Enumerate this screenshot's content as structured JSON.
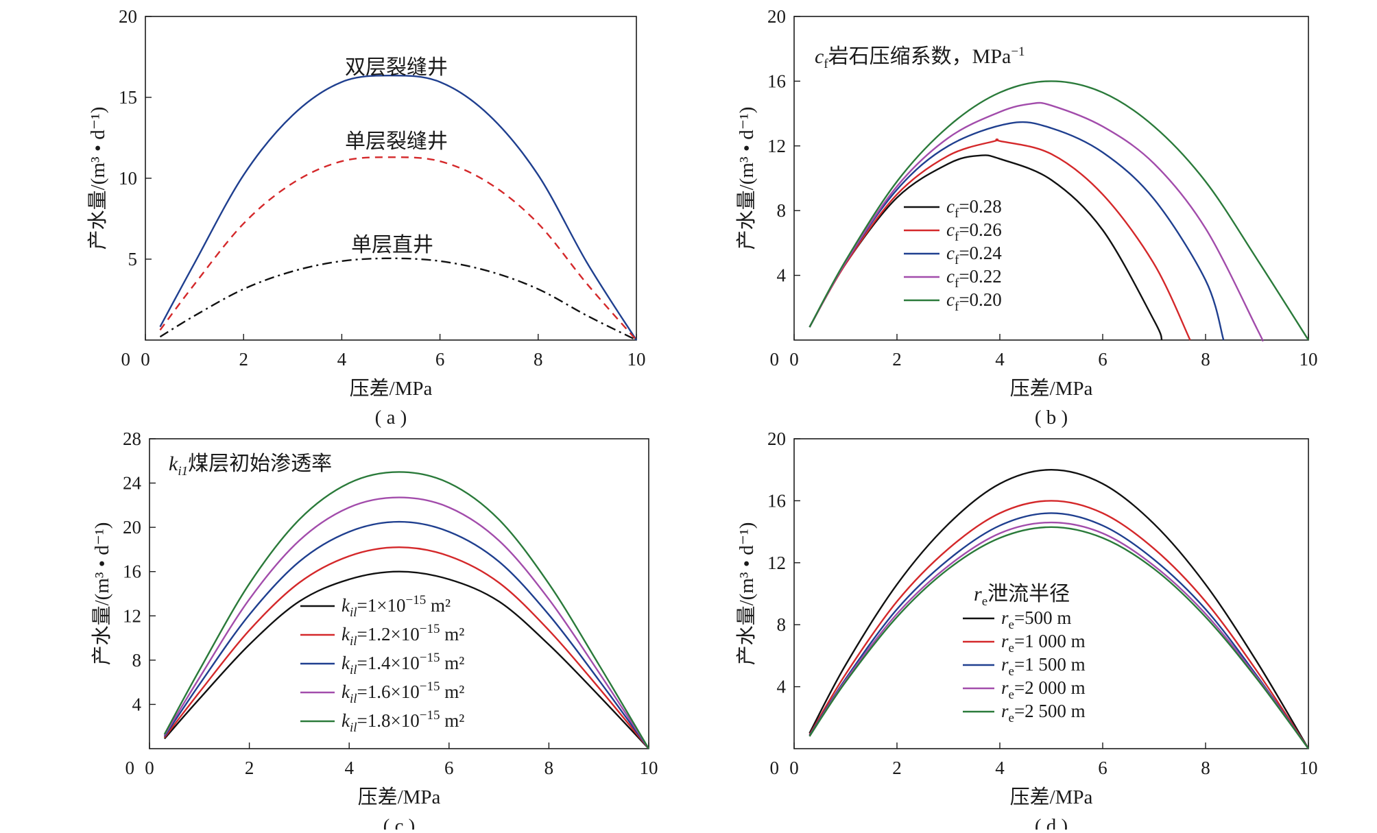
{
  "chart_data": [
    {
      "id": "a",
      "type": "line",
      "panel_label": "( a )",
      "xlabel": "压差/MPa",
      "ylabel": "产水量/(m³ • d⁻¹)",
      "xlim": [
        0,
        10
      ],
      "ylim": [
        0,
        20
      ],
      "xticks": [
        0,
        2,
        4,
        6,
        8,
        10
      ],
      "yticks": [
        5,
        10,
        15,
        20
      ],
      "y_zero_label": "0",
      "grid": false,
      "x": [
        0.3,
        1,
        2,
        3,
        4,
        5,
        6,
        7,
        8,
        9,
        10
      ],
      "series": [
        {
          "label": "双层裂缝井",
          "color": "#1f3f8f",
          "dash": "solid",
          "values": [
            0.82,
            4.75,
            10.2,
            13.9,
            15.95,
            16.35,
            15.95,
            13.9,
            10.2,
            4.75,
            0.0
          ]
        },
        {
          "label": "单层裂缝井",
          "color": "#d4282a",
          "dash": "dashed",
          "values": [
            0.62,
            3.45,
            7.2,
            9.7,
            11.05,
            11.3,
            11.05,
            9.7,
            7.2,
            3.45,
            0.0
          ]
        },
        {
          "label": "单层直井",
          "color": "#111111",
          "dash": "dashdot",
          "values": [
            0.2,
            1.5,
            3.15,
            4.25,
            4.88,
            5.05,
            4.88,
            4.25,
            3.15,
            1.5,
            0.0
          ]
        }
      ]
    },
    {
      "id": "b",
      "type": "line",
      "panel_label": "( b )",
      "xlabel": "压差/MPa",
      "ylabel": "产水量/(m³ • d⁻¹)",
      "xlim": [
        0,
        10
      ],
      "ylim": [
        0,
        20
      ],
      "xticks": [
        0,
        2,
        4,
        6,
        8,
        10
      ],
      "yticks": [
        4,
        8,
        12,
        16,
        20
      ],
      "y_zero_label": "0",
      "grid": false,
      "annotation": {
        "var": "c",
        "sub": "f",
        "text": "岩石压缩系数，MPa",
        "sup": "−1"
      },
      "legend_position": "center-left",
      "series": [
        {
          "var": "c",
          "sub": "f",
          "label": "=0.28",
          "color": "#111111",
          "x": [
            0.3,
            1,
            2,
            3,
            3.6,
            4,
            5,
            6,
            7,
            7.15
          ],
          "values": [
            0.8,
            4.7,
            8.8,
            10.9,
            11.4,
            11.2,
            9.9,
            6.8,
            1.2,
            0.0
          ]
        },
        {
          "var": "c",
          "sub": "f",
          "label": "=0.26",
          "color": "#d4282a",
          "x": [
            0.3,
            1,
            2,
            3,
            3.9,
            4,
            5,
            6,
            7,
            7.7
          ],
          "values": [
            0.8,
            4.7,
            9.0,
            11.4,
            12.3,
            12.3,
            11.5,
            9.0,
            4.7,
            0.0
          ]
        },
        {
          "var": "c",
          "sub": "f",
          "label": "=0.24",
          "color": "#1f3f8f",
          "x": [
            0.3,
            1,
            2,
            3,
            4.2,
            5,
            6,
            7,
            8,
            8.35
          ],
          "values": [
            0.8,
            4.8,
            9.3,
            12.0,
            13.4,
            13.1,
            11.6,
            8.7,
            3.7,
            0.0
          ]
        },
        {
          "var": "c",
          "sub": "f",
          "label": "=0.22",
          "color": "#a24cab",
          "x": [
            0.3,
            1,
            2,
            3,
            4,
            4.6,
            5,
            6,
            7,
            8,
            9,
            9.1
          ],
          "values": [
            0.8,
            4.8,
            9.5,
            12.5,
            14.1,
            14.6,
            14.5,
            13.2,
            10.9,
            6.9,
            0.7,
            0.0
          ]
        },
        {
          "var": "c",
          "sub": "f",
          "label": "=0.20",
          "color": "#2a7a3a",
          "x": [
            0.3,
            1,
            2,
            3,
            4,
            5,
            6,
            7,
            8,
            9,
            10
          ],
          "values": [
            0.8,
            4.9,
            9.8,
            13.2,
            15.3,
            16.0,
            15.3,
            13.2,
            9.8,
            5.0,
            0.0
          ]
        }
      ]
    },
    {
      "id": "c",
      "type": "line",
      "panel_label": "( c )",
      "xlabel": "压差/MPa",
      "ylabel": "产水量/(m³ • d⁻¹)",
      "xlim": [
        0,
        10
      ],
      "ylim": [
        0,
        28
      ],
      "xticks": [
        0,
        2,
        4,
        6,
        8,
        10
      ],
      "yticks": [
        4,
        8,
        12,
        16,
        20,
        24,
        28
      ],
      "y_zero_label": "0",
      "grid": false,
      "annotation": {
        "var": "k",
        "sub": "i1",
        "text": "煤层初始渗透率"
      },
      "legend_position": "lower-center",
      "x": [
        0.3,
        1,
        2,
        3,
        4,
        5,
        6,
        7,
        8,
        9,
        10
      ],
      "series": [
        {
          "var": "k",
          "sub": "il",
          "label": "=1×10",
          "sup": "−15",
          "unit": " m²",
          "color": "#111111",
          "values": [
            0.9,
            4.5,
            9.4,
            13.3,
            15.3,
            16.0,
            15.3,
            13.3,
            9.4,
            4.8,
            0.0
          ]
        },
        {
          "var": "k",
          "sub": "il",
          "label": "=1.2×10",
          "sup": "−15",
          "unit": " m²",
          "color": "#d4282a",
          "values": [
            1.0,
            5.1,
            10.7,
            15.0,
            17.4,
            18.2,
            17.4,
            15.0,
            10.7,
            5.5,
            0.0
          ]
        },
        {
          "var": "k",
          "sub": "il",
          "label": "=1.4×10",
          "sup": "−15",
          "unit": " m²",
          "color": "#1f3f8f",
          "values": [
            1.1,
            5.8,
            12.1,
            16.9,
            19.6,
            20.5,
            19.6,
            16.9,
            12.1,
            6.2,
            0.0
          ]
        },
        {
          "var": "k",
          "sub": "il",
          "label": "=1.6×10",
          "sup": "−15",
          "unit": " m²",
          "color": "#a24cab",
          "values": [
            1.2,
            6.4,
            13.5,
            18.8,
            21.8,
            22.7,
            21.8,
            18.8,
            13.5,
            6.9,
            0.0
          ]
        },
        {
          "var": "k",
          "sub": "il",
          "label": "=1.8×10",
          "sup": "−15",
          "unit": " m²",
          "color": "#2a7a3a",
          "values": [
            1.3,
            7.1,
            14.9,
            20.7,
            24.0,
            25.0,
            24.0,
            20.7,
            14.9,
            7.6,
            0.0
          ]
        }
      ]
    },
    {
      "id": "d",
      "type": "line",
      "panel_label": "( d )",
      "xlabel": "压差/MPa",
      "ylabel": "产水量/(m³ • d⁻¹)",
      "xlim": [
        0,
        10
      ],
      "ylim": [
        0,
        20
      ],
      "xticks": [
        0,
        2,
        4,
        6,
        8,
        10
      ],
      "yticks": [
        4,
        8,
        12,
        16,
        20
      ],
      "y_zero_label": "0",
      "grid": false,
      "annotation": {
        "var": "r",
        "sub": "e",
        "text": "泄流半径"
      },
      "legend_position": "lower-center",
      "x": [
        0.3,
        1,
        2,
        3,
        4,
        5,
        6,
        7,
        8,
        9,
        10
      ],
      "series": [
        {
          "var": "r",
          "sub": "e",
          "label": "=500 m",
          "color": "#111111",
          "values": [
            1.0,
            5.4,
            10.6,
            14.5,
            17.1,
            18.0,
            17.1,
            14.5,
            10.6,
            5.6,
            0.0
          ]
        },
        {
          "var": "r",
          "sub": "e",
          "label": "=1 000 m",
          "color": "#d4282a",
          "values": [
            0.9,
            4.8,
            9.5,
            12.9,
            15.2,
            16.0,
            15.2,
            12.9,
            9.5,
            5.0,
            0.0
          ]
        },
        {
          "var": "r",
          "sub": "e",
          "label": "=1 500 m",
          "color": "#1f3f8f",
          "values": [
            0.85,
            4.5,
            9.0,
            12.2,
            14.4,
            15.2,
            14.4,
            12.2,
            9.0,
            4.7,
            0.0
          ]
        },
        {
          "var": "r",
          "sub": "e",
          "label": "=2 000 m",
          "color": "#a24cab",
          "values": [
            0.8,
            4.4,
            8.7,
            11.8,
            13.9,
            14.6,
            13.9,
            11.8,
            8.7,
            4.6,
            0.0
          ]
        },
        {
          "var": "r",
          "sub": "e",
          "label": "=2 500 m",
          "color": "#2a7a3a",
          "values": [
            0.8,
            4.3,
            8.5,
            11.6,
            13.6,
            14.3,
            13.6,
            11.6,
            8.5,
            4.5,
            0.0
          ]
        }
      ]
    }
  ]
}
